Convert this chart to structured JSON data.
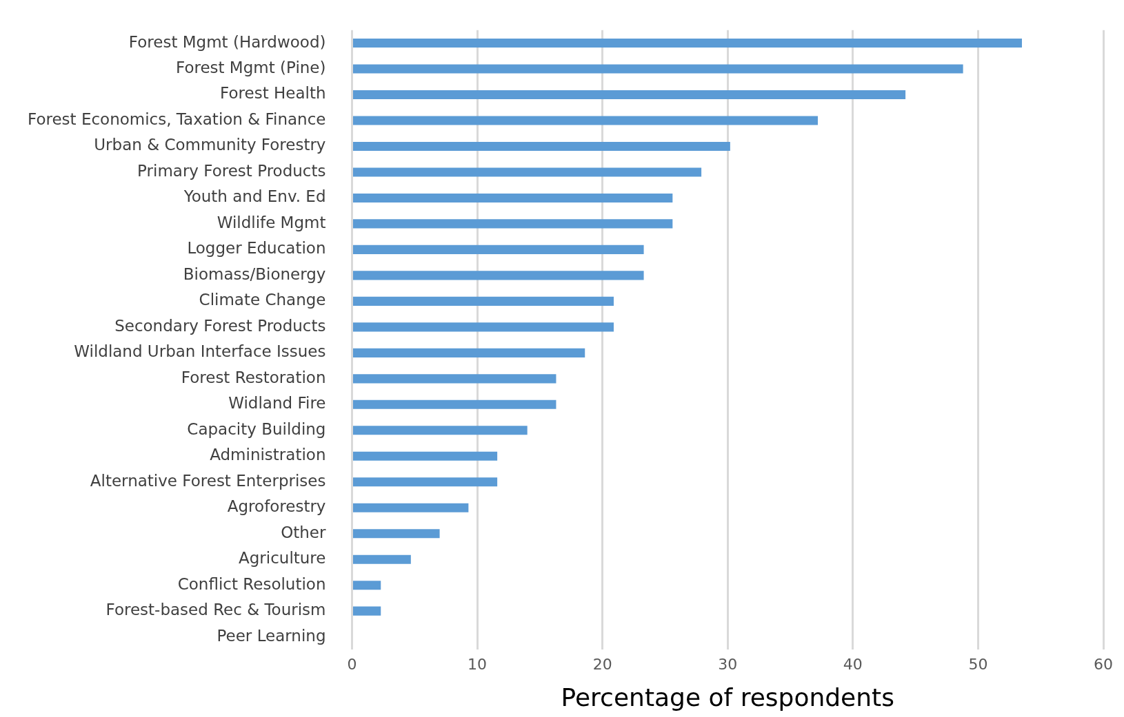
{
  "chart_data": {
    "type": "bar",
    "orientation": "horizontal",
    "xlabel": "Percentage of respondents",
    "categories": [
      "Forest Mgmt (Hardwood)",
      "Forest Mgmt (Pine)",
      "Forest Health",
      "Forest Economics, Taxation & Finance",
      "Urban & Community Forestry",
      "Primary Forest Products",
      "Youth and Env. Ed",
      "Wildlife Mgmt",
      "Logger Education",
      "Biomass/Bionergy",
      "Climate Change",
      "Secondary Forest Products",
      "Wildland Urban Interface Issues",
      "Forest Restoration",
      "Widland Fire",
      "Capacity Building",
      "Administration",
      "Alternative Forest Enterprises",
      "Agroforestry",
      "Other",
      "Agriculture",
      "Conflict Resolution",
      "Forest-based Rec & Tourism",
      "Peer Learning"
    ],
    "values": [
      53.5,
      48.8,
      44.2,
      37.2,
      30.2,
      27.9,
      25.6,
      25.6,
      23.3,
      23.3,
      20.9,
      20.9,
      18.6,
      16.3,
      16.3,
      14.0,
      11.6,
      11.6,
      9.3,
      7.0,
      4.7,
      2.3,
      2.3,
      0
    ],
    "color": "#5b9bd5",
    "xlim": [
      0,
      60
    ],
    "xticks": [
      0,
      10,
      20,
      30,
      40,
      50,
      60
    ],
    "grid": "x",
    "legend": false
  }
}
